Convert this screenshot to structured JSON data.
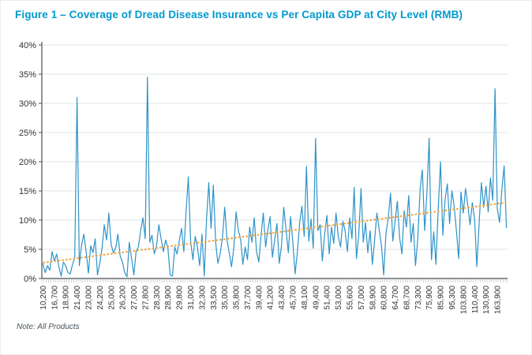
{
  "figure": {
    "title": "Figure 1 – Coverage of Dread Disease Insurance vs Per Capita GDP at City Level (RMB)",
    "note": "Note: All Products"
  },
  "colors": {
    "title": "#0099CC",
    "coverage_line": "#2E93C8",
    "trend_line": "#F2A33C",
    "gridline": "#E8EAEA",
    "axis": "#4A4F54",
    "tick_label": "#303030",
    "minor_tick": "#ABABAB"
  },
  "chart_data": {
    "type": "line",
    "title": "Figure 1 – Coverage of Dread Disease Insurance vs Per Capita GDP at City Level (RMB)",
    "xlabel": "",
    "ylabel": "",
    "ylim": [
      0,
      40
    ],
    "grid": "horizontal",
    "legend": "none",
    "y_tick_labels": [
      "0%",
      "5%",
      "10%",
      "15%",
      "20%",
      "25%",
      "30%",
      "35%",
      "40%"
    ],
    "x_tick_labels": [
      "10,200",
      "16,700",
      "18,900",
      "21,400",
      "23,000",
      "24,200",
      "25,000",
      "26,200",
      "27,000",
      "27,800",
      "28,300",
      "28,900",
      "29,800",
      "31,000",
      "32,300",
      "33,500",
      "35,000",
      "35,800",
      "37,700",
      "39,400",
      "41,200",
      "43,400",
      "45,700",
      "48,100",
      "49,400",
      "51,400",
      "53,000",
      "55,600",
      "57,000",
      "58,900",
      "60,800",
      "64,700",
      "68,700",
      "73,300",
      "75,900",
      "85,900",
      "95,300",
      "103,800",
      "110,400",
      "130,900",
      "163,900"
    ],
    "x_label_every": 5,
    "series": [
      {
        "name": "coverage-line",
        "type": "line",
        "color": "#2E93C8",
        "values": [
          2.5,
          1.0,
          2.2,
          1.4,
          4.6,
          3.0,
          4.2,
          2.0,
          0.4,
          2.8,
          2.2,
          1.0,
          0.8,
          2.4,
          3.6,
          31.0,
          2.2,
          5.8,
          7.6,
          4.6,
          0.9,
          5.6,
          4.4,
          6.8,
          0.6,
          2.6,
          5.2,
          9.2,
          6.6,
          11.2,
          5.8,
          4.4,
          5.2,
          7.6,
          3.8,
          2.8,
          1.0,
          0.3,
          6.2,
          3.4,
          0.6,
          4.6,
          5.4,
          8.2,
          10.4,
          6.8,
          34.5,
          6.2,
          7.4,
          4.2,
          5.6,
          9.2,
          6.8,
          4.6,
          6.6,
          5.2,
          0.6,
          0.4,
          5.4,
          4.2,
          6.4,
          8.6,
          4.6,
          11.6,
          17.4,
          6.4,
          3.2,
          7.2,
          5.4,
          2.2,
          7.6,
          0.4,
          10.2,
          16.4,
          8.6,
          16.0,
          6.2,
          2.6,
          4.2,
          7.0,
          12.2,
          6.6,
          4.4,
          2.0,
          5.2,
          11.4,
          8.2,
          6.8,
          2.4,
          5.4,
          3.2,
          8.8,
          6.2,
          10.4,
          4.6,
          2.8,
          7.4,
          11.2,
          5.4,
          8.4,
          10.6,
          3.6,
          6.6,
          9.4,
          2.6,
          5.6,
          12.2,
          8.4,
          4.4,
          10.6,
          6.2,
          0.8,
          4.6,
          9.6,
          12.4,
          7.2,
          19.2,
          6.4,
          10.2,
          5.2,
          24.0,
          8.2,
          9.2,
          3.0,
          7.6,
          10.8,
          4.2,
          8.8,
          6.0,
          11.2,
          7.2,
          5.4,
          9.8,
          8.2,
          4.6,
          10.4,
          6.8,
          15.6,
          3.4,
          7.4,
          15.4,
          6.2,
          9.6,
          4.4,
          8.2,
          2.4,
          6.6,
          11.2,
          8.4,
          5.6,
          0.6,
          7.8,
          10.4,
          14.6,
          6.4,
          9.8,
          13.2,
          7.0,
          4.2,
          11.6,
          8.8,
          14.2,
          6.2,
          9.4,
          2.2,
          6.8,
          15.2,
          18.6,
          8.2,
          14.4,
          24.0,
          3.2,
          8.0,
          2.4,
          12.0,
          20.0,
          7.4,
          13.6,
          16.2,
          9.4,
          15.0,
          12.4,
          8.2,
          3.4,
          14.8,
          11.2,
          15.4,
          12.6,
          9.2,
          13.0,
          10.2,
          2.0,
          9.4,
          16.4,
          12.2,
          15.8,
          11.4,
          17.2,
          13.4,
          32.5,
          12.0,
          9.6,
          15.2,
          19.3,
          8.7
        ]
      },
      {
        "name": "trend-line",
        "type": "dashed-trend",
        "color": "#F2A33C",
        "start": 2.7,
        "end": 13.0
      }
    ]
  }
}
